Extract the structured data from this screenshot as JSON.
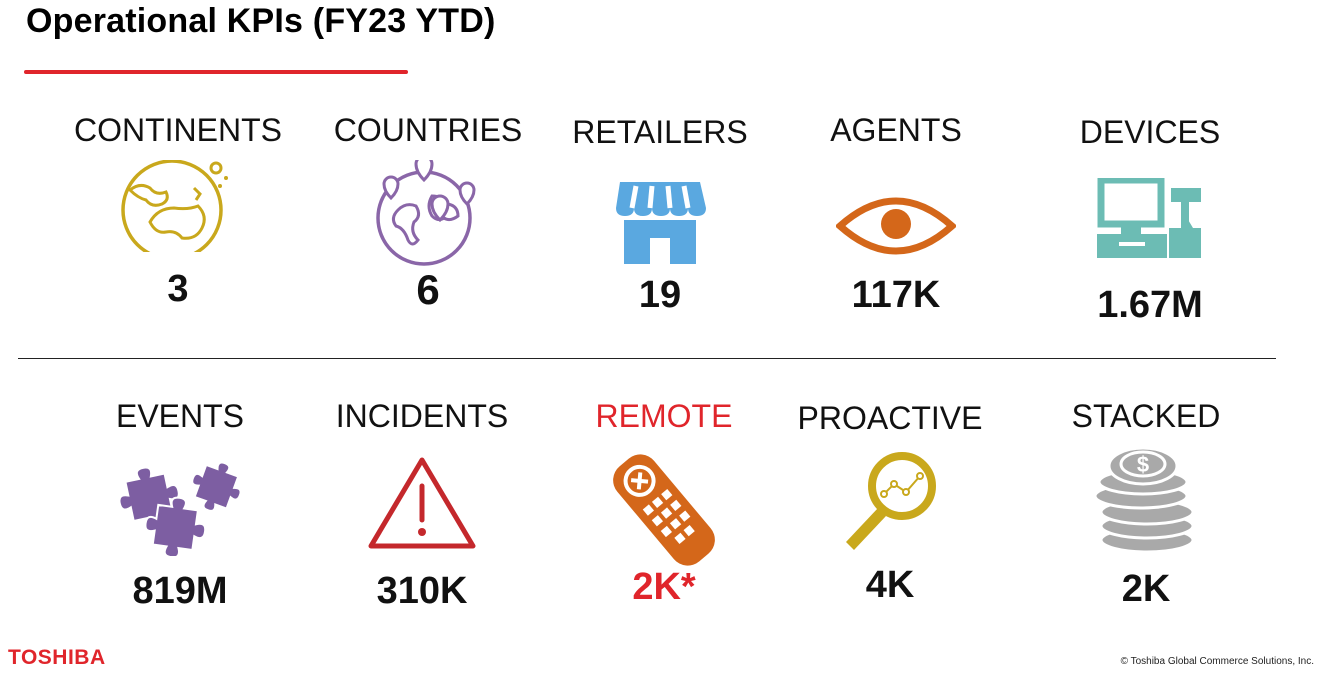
{
  "title": "Operational KPIs (FY23 YTD)",
  "brand_color": "#e0252b",
  "row1": [
    {
      "label": "CONTINENTS",
      "value": "3",
      "icon": "globe-icon",
      "color": "#c9a81c"
    },
    {
      "label": "COUNTRIES",
      "value": "6",
      "icon": "globe-pins-icon",
      "color": "#8a66a8"
    },
    {
      "label": "RETAILERS",
      "value": "19",
      "icon": "storefront-icon",
      "color": "#5aa8e0"
    },
    {
      "label": "AGENTS",
      "value": "117K",
      "icon": "eye-icon",
      "color": "#d4671a"
    },
    {
      "label": "DEVICES",
      "value": "1.67M",
      "icon": "pos-terminal-icon",
      "color": "#6cbcb4"
    }
  ],
  "row2": [
    {
      "label": "EVENTS",
      "value": "819M",
      "icon": "puzzle-icon",
      "color": "#7d5ea2"
    },
    {
      "label": "INCIDENTS",
      "value": "310K",
      "icon": "warning-icon",
      "color": "#c4282c"
    },
    {
      "label": "REMOTE",
      "value": "2K*",
      "icon": "remote-control-icon",
      "color": "#d4671a"
    },
    {
      "label": "PROACTIVE",
      "value": "4K",
      "icon": "magnifier-chart-icon",
      "color": "#c9a81c"
    },
    {
      "label": "STACKED",
      "value": "2K",
      "icon": "coin-stack-icon",
      "color": "#a9a9a9"
    }
  ],
  "footer": {
    "logo": "TOSHIBA",
    "copyright": "© Toshiba Global Commerce Solutions, Inc."
  }
}
